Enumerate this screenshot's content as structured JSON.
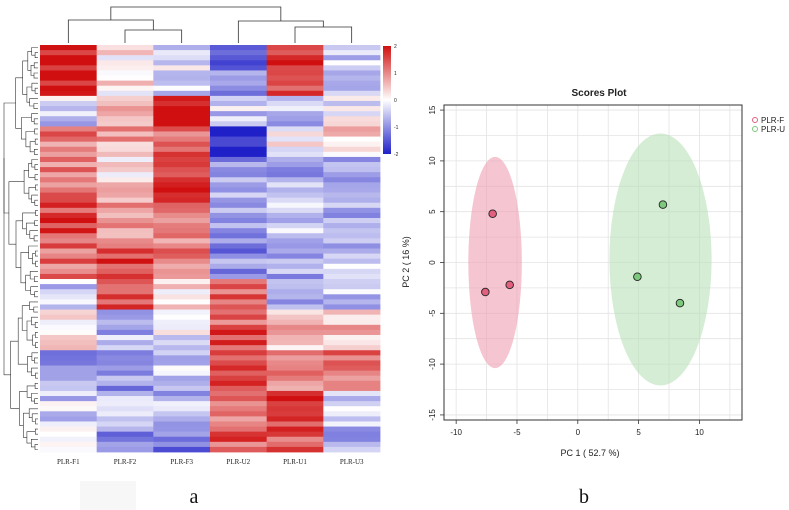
{
  "panel_labels": {
    "left": "a",
    "right": "b"
  },
  "chart_data": [
    {
      "type": "heatmap",
      "columns": [
        "PLR-F1",
        "PLR-F2",
        "PLR-F3",
        "PLR-U2",
        "PLR-U1",
        "PLR-U3"
      ],
      "colorbar": {
        "ticks": [
          "2",
          "1",
          "0",
          "-1",
          "-2"
        ],
        "range": [
          -2,
          2
        ],
        "low_color": "#2020c8",
        "mid_color": "#ffffff",
        "high_color": "#d01010"
      },
      "row_count": 80,
      "blocks": [
        {
          "rows": 10,
          "values": [
            2.0,
            0.2,
            -0.3,
            -1.2,
            1.6,
            -0.5
          ]
        },
        {
          "rows": 6,
          "values": [
            -0.4,
            0.6,
            2.0,
            -0.4,
            -0.6,
            -0.2
          ]
        },
        {
          "rows": 6,
          "values": [
            1.1,
            0.8,
            1.4,
            -2.0,
            0.1,
            0.5
          ]
        },
        {
          "rows": 8,
          "values": [
            1.2,
            0.3,
            1.7,
            -0.9,
            -0.7,
            -1.0
          ]
        },
        {
          "rows": 8,
          "values": [
            1.6,
            0.9,
            1.3,
            -1.0,
            -0.5,
            -0.6
          ]
        },
        {
          "rows": 8,
          "values": [
            1.2,
            1.5,
            1.1,
            -1.0,
            -0.8,
            -0.5
          ]
        },
        {
          "rows": 6,
          "values": [
            -0.5,
            1.3,
            0.3,
            1.3,
            -0.6,
            -0.5
          ]
        },
        {
          "rows": 8,
          "values": [
            0.4,
            -0.6,
            -0.1,
            1.4,
            0.5,
            0.6
          ]
        },
        {
          "rows": 8,
          "values": [
            -0.8,
            -0.9,
            -0.4,
            1.6,
            1.2,
            1.1
          ]
        },
        {
          "rows": 6,
          "values": [
            -0.4,
            -0.5,
            -0.6,
            1.2,
            1.8,
            -0.3
          ]
        },
        {
          "rows": 6,
          "values": [
            0.4,
            -0.9,
            -1.1,
            1.3,
            1.5,
            -0.6
          ]
        }
      ]
    },
    {
      "type": "scatter",
      "title": "Scores Plot",
      "xlabel": "PC 1 ( 52.7 %)",
      "ylabel": "PC 2 ( 16 %)",
      "xlim": [
        -11,
        13.5
      ],
      "ylim": [
        -15.5,
        15.5
      ],
      "xticks": [
        -10,
        -5,
        0,
        5,
        10
      ],
      "yticks": [
        -15,
        -10,
        -5,
        0,
        5,
        10,
        15
      ],
      "grid": true,
      "legend": "top-right",
      "series": [
        {
          "name": "PLR-F",
          "color": "#ef9fb3",
          "marker_color": "#e0607e",
          "points": [
            [
              -7.0,
              4.8
            ],
            [
              -5.6,
              -2.2
            ],
            [
              -7.6,
              -2.9
            ]
          ],
          "ellipse": {
            "cx": -6.8,
            "cy": 0.0,
            "rx": 2.2,
            "ry": 10.4
          }
        },
        {
          "name": "PLR-U",
          "color": "#b9dfb9",
          "marker_color": "#7cc87c",
          "points": [
            [
              7.0,
              5.7
            ],
            [
              4.9,
              -1.4
            ],
            [
              8.4,
              -4.0
            ]
          ],
          "ellipse": {
            "cx": 6.8,
            "cy": 0.3,
            "rx": 4.2,
            "ry": 12.4
          }
        }
      ]
    }
  ]
}
